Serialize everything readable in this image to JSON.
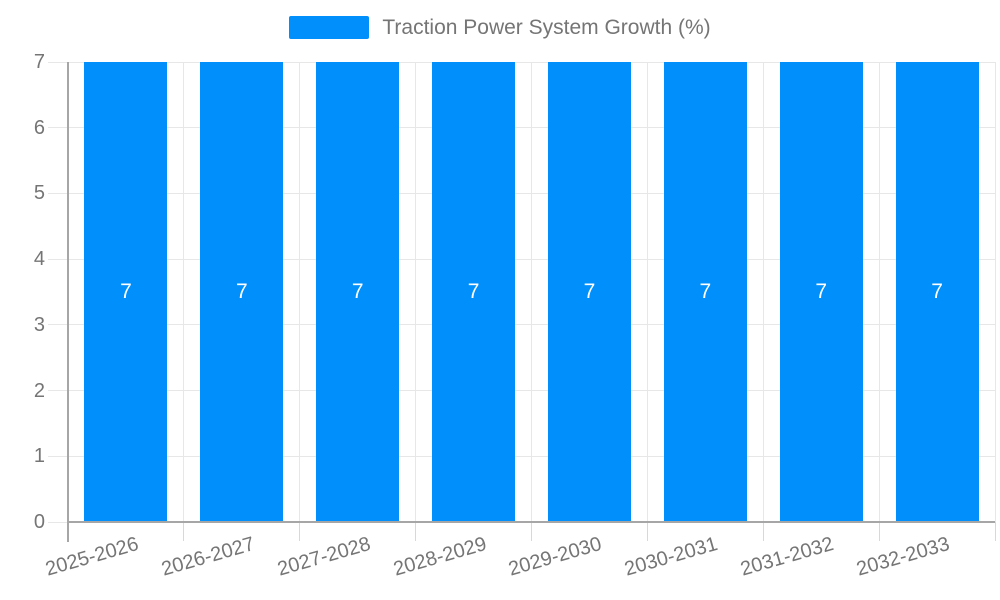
{
  "legend": {
    "label": "Traction Power System Growth (%)",
    "swatch_color": "#008FFB"
  },
  "chart_data": {
    "type": "bar",
    "title": "Traction Power System Growth (%)",
    "categories": [
      "2025-2026",
      "2026-2027",
      "2027-2028",
      "2028-2029",
      "2029-2030",
      "2030-2031",
      "2031-2032",
      "2032-2033"
    ],
    "series": [
      {
        "name": "Traction Power System Growth (%)",
        "values": [
          7,
          7,
          7,
          7,
          7,
          7,
          7,
          7
        ]
      }
    ],
    "data_labels": [
      "7",
      "7",
      "7",
      "7",
      "7",
      "7",
      "7",
      "7"
    ],
    "xlabel": "",
    "ylabel": "",
    "ylim": [
      0,
      7
    ],
    "yticks": [
      "0",
      "1",
      "2",
      "3",
      "4",
      "5",
      "6",
      "7"
    ],
    "grid": true,
    "legend_position": "top",
    "colors": {
      "bar": "#008FFB",
      "grid": "#e7e7e7",
      "axis": "#a6a6a6",
      "tick": "#d8d8d8",
      "label": "#757575",
      "data_label": "#ffffff",
      "background": "#ffffff"
    }
  }
}
